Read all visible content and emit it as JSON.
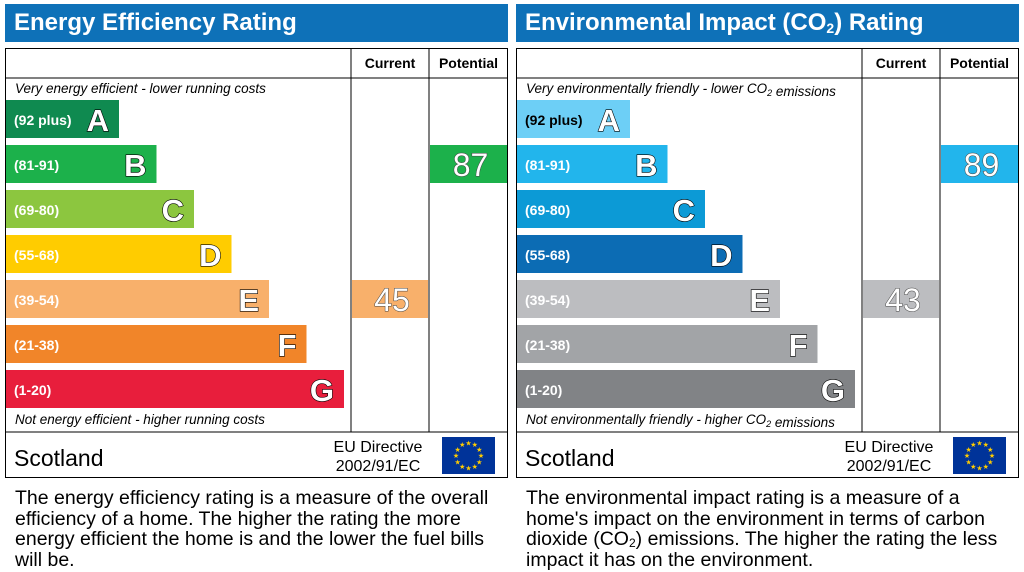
{
  "chart_data": [
    {
      "type": "bar",
      "title": "Energy Efficiency Rating",
      "columns": [
        "Current",
        "Potential"
      ],
      "top_note": "Very energy efficient - lower running costs",
      "bottom_note": "Not energy efficient - higher running costs",
      "categories": [
        {
          "range": "(92 plus)",
          "letter": "A",
          "color": "#0f8a50"
        },
        {
          "range": "(81-91)",
          "letter": "B",
          "color": "#1cb14b"
        },
        {
          "range": "(69-80)",
          "letter": "C",
          "color": "#8cc63f"
        },
        {
          "range": "(55-68)",
          "letter": "D",
          "color": "#ffcc00"
        },
        {
          "range": "(39-54)",
          "letter": "E",
          "color": "#f8b06b"
        },
        {
          "range": "(21-38)",
          "letter": "F",
          "color": "#f18529"
        },
        {
          "range": "(1-20)",
          "letter": "G",
          "color": "#e81e3c"
        }
      ],
      "current": {
        "value": 45,
        "band": "E",
        "color": "#f8b06b"
      },
      "potential": {
        "value": 87,
        "band": "B",
        "color": "#1cb14b"
      },
      "region": "Scotland",
      "directive_line1": "EU Directive",
      "directive_line2": "2002/91/EC"
    },
    {
      "type": "bar",
      "title": "Environmental Impact (CO2) Rating",
      "columns": [
        "Current",
        "Potential"
      ],
      "top_note": "Very environmentally friendly - lower CO2 emissions",
      "bottom_note": "Not environmentally friendly - higher CO2 emissions",
      "categories": [
        {
          "range": "(92 plus)",
          "letter": "A",
          "color": "#6dcff6"
        },
        {
          "range": "(81-91)",
          "letter": "B",
          "color": "#22b5ec"
        },
        {
          "range": "(69-80)",
          "letter": "C",
          "color": "#0c9ad6"
        },
        {
          "range": "(55-68)",
          "letter": "D",
          "color": "#0c6cb4"
        },
        {
          "range": "(39-54)",
          "letter": "E",
          "color": "#bcbdc0"
        },
        {
          "range": "(21-38)",
          "letter": "F",
          "color": "#a2a4a7"
        },
        {
          "range": "(1-20)",
          "letter": "G",
          "color": "#818386"
        }
      ],
      "current": {
        "value": 43,
        "band": "E",
        "color": "#bcbdc0"
      },
      "potential": {
        "value": 89,
        "band": "B",
        "color": "#22b5ec"
      },
      "region": "Scotland",
      "directive_line1": "EU Directive",
      "directive_line2": "2002/91/EC"
    }
  ],
  "descriptions": {
    "energy": "The energy efficiency rating is a measure of the overall efficiency of a home. The higher the rating the more energy efficient the home is and the lower the fuel bills will be.",
    "env": "The environmental impact rating is a measure of a home's impact on the environment in terms of carbon dioxide (CO2) emissions. The higher the rating the less impact it has on the environment."
  },
  "colors": {
    "title_bar": "#0e71b8",
    "eu_flag": "#003399",
    "eu_stars": "#ffcc00"
  },
  "icons": {
    "flag": "eu-flag-icon"
  }
}
